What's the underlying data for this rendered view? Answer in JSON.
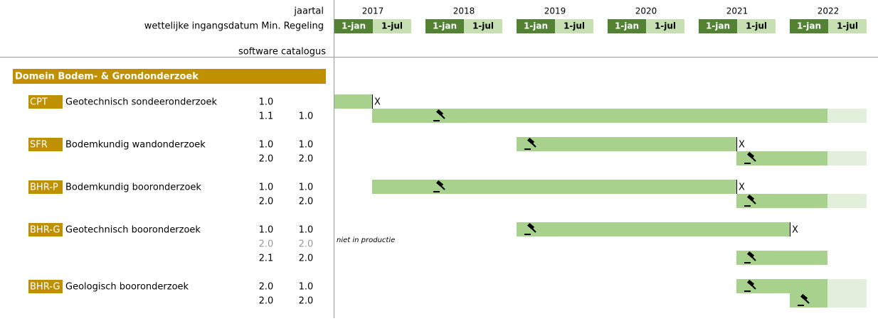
{
  "header": {
    "year_label": "jaartal",
    "date_label": "wettelijke ingangsdatum Min. Regeling",
    "catalog_label": "software catalogus",
    "years": [
      "2017",
      "2018",
      "2019",
      "2020",
      "2021",
      "2022"
    ],
    "halves": [
      "1-jan",
      "1-jul"
    ]
  },
  "domain": "Domein Bodem- & Grondonderzoek",
  "groups": [
    {
      "code": "CPT",
      "name": "Geotechnisch sondeeronderzoek",
      "rows": [
        {
          "regulation": "1.0",
          "catalog": null,
          "bars": [
            {
              "start": "2017-01",
              "end": "2017-07",
              "end_mark": "X"
            }
          ]
        },
        {
          "regulation": "1.1",
          "catalog": "1.0",
          "bars": [
            {
              "start": "2017-07",
              "end": "2022-07",
              "open_end": true,
              "gavel": "2018-01"
            }
          ]
        }
      ]
    },
    {
      "code": "SFR",
      "name": "Bodemkundig wandonderzoek",
      "rows": [
        {
          "regulation": "1.0",
          "catalog": "1.0",
          "bars": [
            {
              "start": "2019-01",
              "end": "2021-07",
              "end_mark": "X",
              "gavel": "2019-01"
            }
          ]
        },
        {
          "regulation": "2.0",
          "catalog": "2.0",
          "bars": [
            {
              "start": "2021-07",
              "end": "2022-07",
              "open_end": true,
              "gavel": "2021-07"
            }
          ]
        }
      ]
    },
    {
      "code": "BHR-P",
      "name": "Bodemkundig booronderzoek",
      "rows": [
        {
          "regulation": "1.0",
          "catalog": "1.0",
          "bars": [
            {
              "start": "2017-07",
              "end": "2021-07",
              "end_mark": "X",
              "gavel": "2018-01"
            }
          ]
        },
        {
          "regulation": "2.0",
          "catalog": "2.0",
          "bars": [
            {
              "start": "2021-07",
              "end": "2022-07",
              "open_end": true,
              "gavel": "2021-07"
            }
          ]
        }
      ]
    },
    {
      "code": "BHR-G",
      "name": "Geotechnisch booronderzoek",
      "rows": [
        {
          "regulation": "1.0",
          "catalog": "1.0",
          "bars": [
            {
              "start": "2019-01",
              "end": "2022-01",
              "end_mark": "X",
              "gavel": "2019-01"
            }
          ]
        },
        {
          "regulation": "2.0",
          "catalog": "2.0",
          "inactive": true,
          "note": "niet in productie",
          "bars": []
        },
        {
          "regulation": "2.1",
          "catalog": "2.0",
          "bars": [
            {
              "start": "2021-07",
              "end": "2022-07",
              "gavel": "2021-07"
            }
          ]
        }
      ]
    },
    {
      "code": "BHR-G",
      "name": "Geologisch booronderzoek",
      "rows": [
        {
          "regulation": "2.0",
          "catalog": "1.0",
          "bars": [
            {
              "start": "2021-07",
              "end": "2022-07",
              "open_end": true,
              "gavel": "2021-07"
            }
          ]
        },
        {
          "regulation": "2.0",
          "catalog": "2.0",
          "bars": [
            {
              "start": "2022-01",
              "end": "2022-07",
              "open_end": true,
              "gavel": "2022-01"
            }
          ]
        }
      ]
    }
  ]
}
